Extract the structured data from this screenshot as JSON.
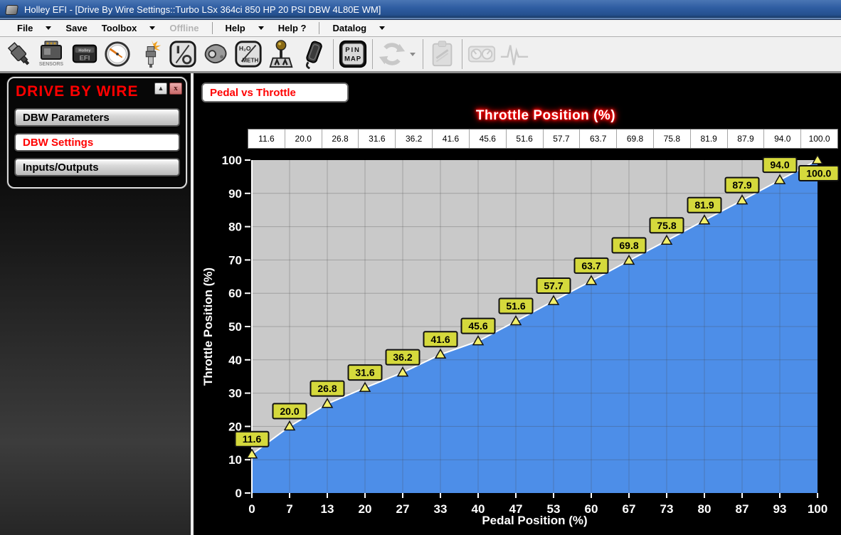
{
  "window": {
    "title": "Holley EFI - [Drive By Wire Settings::Turbo LSx 364ci 850 HP 20 PSI DBW 4L80E WM]"
  },
  "menu": {
    "items": [
      {
        "label": "File",
        "arrow": true
      },
      {
        "label": "Save",
        "arrow": false
      },
      {
        "label": "Toolbox",
        "arrow": true
      },
      {
        "label": "Offline",
        "arrow": false,
        "disabled": true
      },
      {
        "sep": true
      },
      {
        "label": "Help",
        "arrow": true
      },
      {
        "label": "Help ?",
        "arrow": false
      },
      {
        "sep": true
      },
      {
        "label": "Datalog",
        "arrow": true
      }
    ]
  },
  "toolbar": {
    "items": [
      {
        "icon": "fuel-injector-icon"
      },
      {
        "icon": "sensors-icon"
      },
      {
        "icon": "ecu-icon"
      },
      {
        "icon": "gauge-icon"
      },
      {
        "icon": "spark-plug-icon"
      },
      {
        "icon": "io-icon"
      },
      {
        "icon": "knock-sensor-icon"
      },
      {
        "icon": "water-meth-icon"
      },
      {
        "icon": "shifter-icon"
      },
      {
        "icon": "pedal-icon"
      },
      {
        "sep": true
      },
      {
        "icon": "pin-map-icon"
      },
      {
        "sep": true
      },
      {
        "icon": "sync-icon",
        "disabled": true,
        "dropdown": true
      },
      {
        "sep": true
      },
      {
        "icon": "clipboard-icon",
        "disabled": true
      },
      {
        "sep": true
      },
      {
        "icon": "gauges-icon",
        "disabled": true
      },
      {
        "icon": "pulse-icon",
        "disabled": true
      }
    ]
  },
  "sidebar": {
    "title": "DRIVE BY WIRE",
    "collapse_glyph": "▲",
    "close_glyph": "x",
    "buttons": [
      {
        "label": "DBW Parameters",
        "selected": false
      },
      {
        "label": "DBW Settings",
        "selected": true
      },
      {
        "label": "Inputs/Outputs",
        "selected": false
      }
    ]
  },
  "main": {
    "tab_label": "Pedal vs Throttle"
  },
  "colors": {
    "accent_red": "#FF0000",
    "titlebar_blue": "#2F5DA2"
  },
  "chart_data": {
    "type": "area",
    "title": "Throttle Position (%)",
    "xlabel": "Pedal Position (%)",
    "ylabel": "Throttle Position (%)",
    "x_tick_labels": [
      "0",
      "7",
      "13",
      "20",
      "27",
      "33",
      "40",
      "47",
      "53",
      "60",
      "67",
      "73",
      "80",
      "87",
      "93",
      "100"
    ],
    "x": [
      0,
      6.7,
      13.3,
      20,
      26.7,
      33.3,
      40,
      46.7,
      53.3,
      60,
      66.7,
      73.3,
      80,
      86.7,
      93.3,
      100
    ],
    "values": [
      11.6,
      20.0,
      26.8,
      31.6,
      36.2,
      41.6,
      45.6,
      51.6,
      57.7,
      63.7,
      69.8,
      75.8,
      81.9,
      87.9,
      94.0,
      100.0
    ],
    "ylim": [
      0,
      100
    ],
    "y_ticks": [
      0,
      10,
      20,
      30,
      40,
      50,
      60,
      70,
      80,
      90,
      100
    ],
    "grid": true,
    "legend": false,
    "fill_color": "#4D8EE8",
    "line_color": "#FFFFFF",
    "marker_color": "#F2EF6A",
    "label_bg": "#D5D93C",
    "plot_bg": "#C9C9C9",
    "grid_color": "#AFAFAF",
    "axis_text_color": "#FFFFFF"
  }
}
